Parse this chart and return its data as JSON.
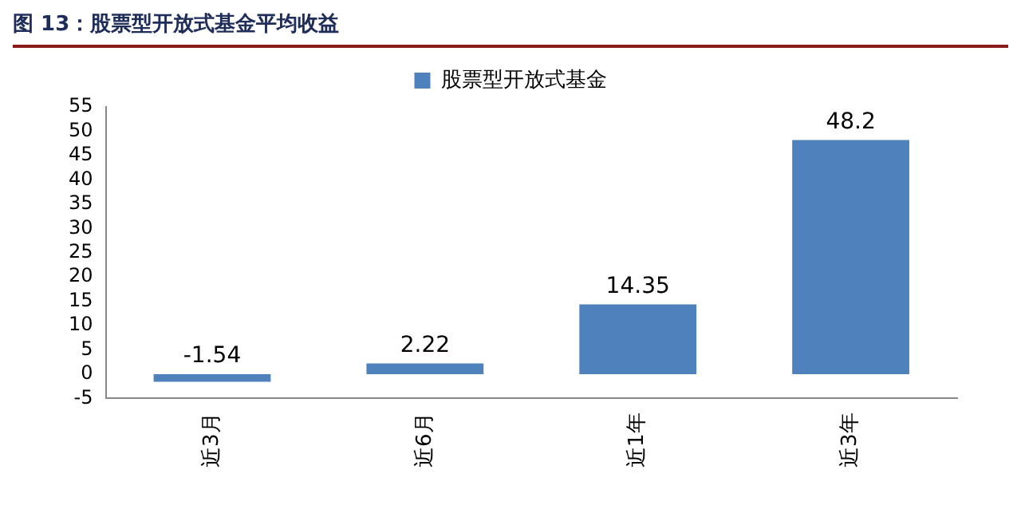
{
  "chart_data": {
    "type": "bar",
    "title": "图 13：股票型开放式基金平均收益",
    "categories": [
      "近3月",
      "近6月",
      "近1年",
      "近3年"
    ],
    "series": [
      {
        "name": "股票型开放式基金",
        "color": "#4f81bd",
        "values": [
          -1.54,
          2.22,
          14.35,
          48.2
        ]
      }
    ],
    "ylim": [
      -5,
      55
    ],
    "yticks": [
      -5,
      0,
      5,
      10,
      15,
      20,
      25,
      30,
      35,
      40,
      45,
      50,
      55
    ],
    "grid": false,
    "legend": "top",
    "data_labels": true
  }
}
